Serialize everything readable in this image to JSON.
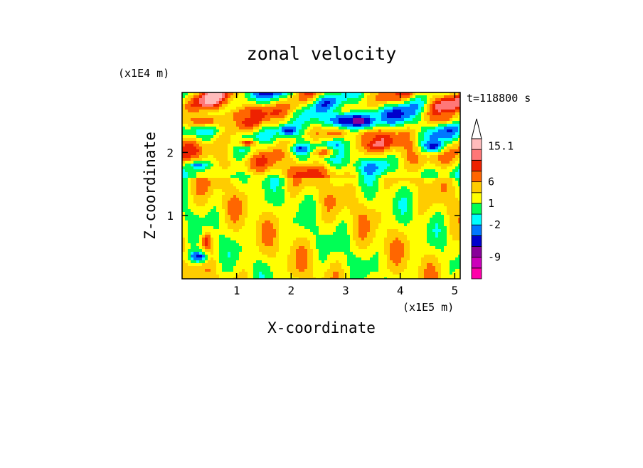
{
  "chart_data": {
    "type": "heatmap",
    "title": "zonal velocity",
    "xlabel": "X-coordinate",
    "ylabel": "Z-coordinate",
    "x_unit": "(x1E5 m)",
    "y_unit": "(x1E4 m)",
    "time_label": "t=118800 s",
    "xlim": [
      0.0,
      5.1
    ],
    "ylim": [
      0.0,
      2.95
    ],
    "x_ticks": [
      1,
      2,
      3,
      4,
      5
    ],
    "y_ticks": [
      1,
      2
    ],
    "colorbar": {
      "labels": [
        {
          "value": 15.1,
          "text": "15.1"
        },
        {
          "value": 6,
          "text": "6"
        },
        {
          "value": 1,
          "text": "1"
        },
        {
          "value": -2,
          "text": "-2"
        },
        {
          "value": -9,
          "text": "-9"
        }
      ],
      "levels": [
        {
          "color": "#ff00aa"
        },
        {
          "color": "#cc00bb"
        },
        {
          "color": "#880099"
        },
        {
          "color": "#0000cc"
        },
        {
          "color": "#0077ff"
        },
        {
          "color": "#00ffff"
        },
        {
          "color": "#00ff55"
        },
        {
          "color": "#ffff00"
        },
        {
          "color": "#ffcc00"
        },
        {
          "color": "#ff6600"
        },
        {
          "color": "#ee2200"
        },
        {
          "color": "#ff7777"
        },
        {
          "color": "#ffbbbb"
        }
      ]
    },
    "field_features": [
      {
        "x": 3.0,
        "z": 2.5,
        "rx": 0.55,
        "rz": 0.17,
        "level": 3
      },
      {
        "x": 3.25,
        "z": 2.5,
        "rx": 0.2,
        "rz": 0.07,
        "level": 2
      },
      {
        "x": 2.2,
        "z": 2.05,
        "rx": 0.2,
        "rz": 0.07,
        "level": 3
      },
      {
        "x": 4.6,
        "z": 2.1,
        "rx": 0.2,
        "rz": 0.1,
        "level": 3
      },
      {
        "x": 1.95,
        "z": 2.35,
        "rx": 0.18,
        "rz": 0.09,
        "level": 3
      },
      {
        "x": 0.3,
        "z": 1.8,
        "rx": 0.18,
        "rz": 0.06,
        "level": 4
      },
      {
        "x": 0.3,
        "z": 0.35,
        "rx": 0.18,
        "rz": 0.1,
        "level": 3
      },
      {
        "x": 0.4,
        "z": 2.5,
        "rx": 0.6,
        "rz": 0.13,
        "level": 9
      },
      {
        "x": 1.1,
        "z": 2.6,
        "rx": 0.3,
        "rz": 0.1,
        "level": 9
      },
      {
        "x": 3.4,
        "z": 2.25,
        "rx": 0.25,
        "rz": 0.1,
        "level": 9
      },
      {
        "x": 2.8,
        "z": 2.3,
        "rx": 0.2,
        "rz": 0.08,
        "level": 9
      },
      {
        "x": 4.8,
        "z": 2.55,
        "rx": 0.25,
        "rz": 0.1,
        "level": 9
      },
      {
        "x": 3.8,
        "z": 2.9,
        "rx": 0.3,
        "rz": 0.06,
        "level": 9
      },
      {
        "x": 2.6,
        "z": 2.0,
        "rx": 0.25,
        "rz": 0.09,
        "level": 9
      },
      {
        "x": 0.45,
        "z": 0.6,
        "rx": 0.08,
        "rz": 0.15,
        "level": 10
      },
      {
        "x": 1.2,
        "z": 2.15,
        "rx": 0.2,
        "rz": 0.06,
        "level": 10
      }
    ]
  }
}
